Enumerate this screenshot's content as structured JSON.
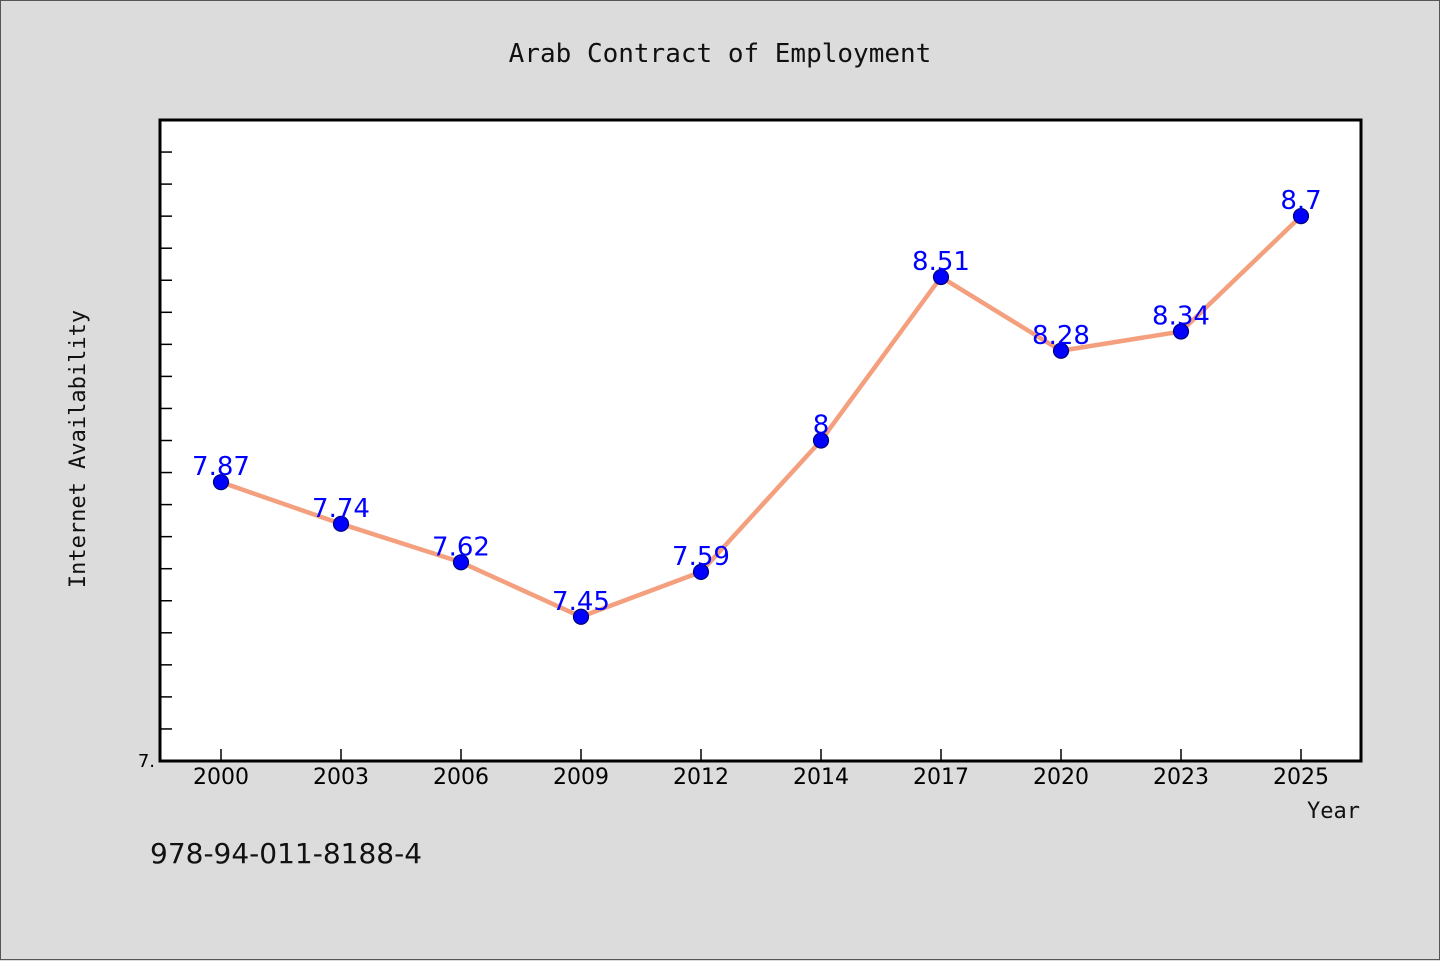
{
  "chart_data": {
    "type": "line",
    "title": "Arab Contract of Employment",
    "xlabel": "Year",
    "ylabel": "Internet Availability",
    "categories": [
      "2000",
      "2003",
      "2006",
      "2009",
      "2012",
      "2014",
      "2017",
      "2020",
      "2023",
      "2025"
    ],
    "series": [
      {
        "values": [
          7.87,
          7.74,
          7.62,
          7.45,
          7.59,
          8,
          8.51,
          8.28,
          8.34,
          8.7
        ],
        "labels": [
          "7.87",
          "7.74",
          "7.62",
          "7.45",
          "7.59",
          "8",
          "8.51",
          "8.28",
          "8.34",
          "8.7"
        ]
      }
    ],
    "ylim": [
      7.0,
      9.0
    ],
    "y_tick_label": "7.",
    "grid": false,
    "colors": {
      "line": "#f4a07e",
      "marker": "#0000ff",
      "labels": "#0000ff"
    }
  },
  "footnote": "978-94-011-8188-4"
}
